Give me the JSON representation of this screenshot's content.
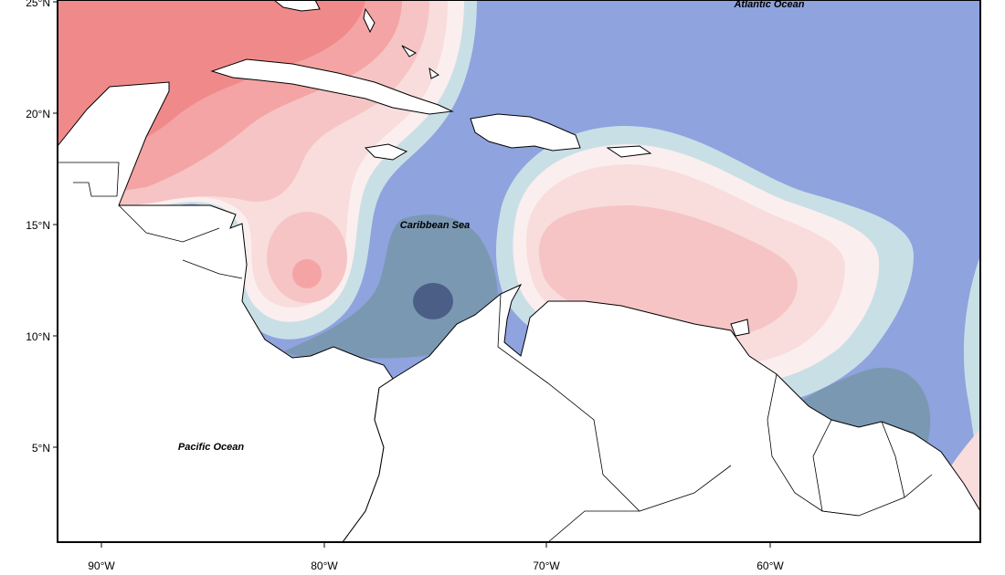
{
  "map": {
    "ocean_labels": {
      "atlantic": "Atlantic Ocean",
      "caribbean": "Caribbean Sea",
      "pacific": "Pacific Ocean"
    },
    "lat_ticks": [
      "25°N",
      "20°N",
      "15°N",
      "10°N",
      "5°N"
    ],
    "lon_ticks": [
      "90°W",
      "80°W",
      "70°W",
      "60°W"
    ],
    "extent": {
      "lon_min": -92,
      "lon_max": -51,
      "lat_min": 1,
      "lat_max": 25.5
    },
    "colors": {
      "red_strong": "#f08a8a",
      "red_mid": "#f4a4a4",
      "red_light": "#f6c4c4",
      "pink": "#f9dcdc",
      "pale": "#fbeeee",
      "light_blue": "#c9dfe6",
      "blue": "#8fa3de",
      "slate": "#7b98b3",
      "dark_slate": "#4b5f86",
      "land": "#ffffff"
    }
  }
}
